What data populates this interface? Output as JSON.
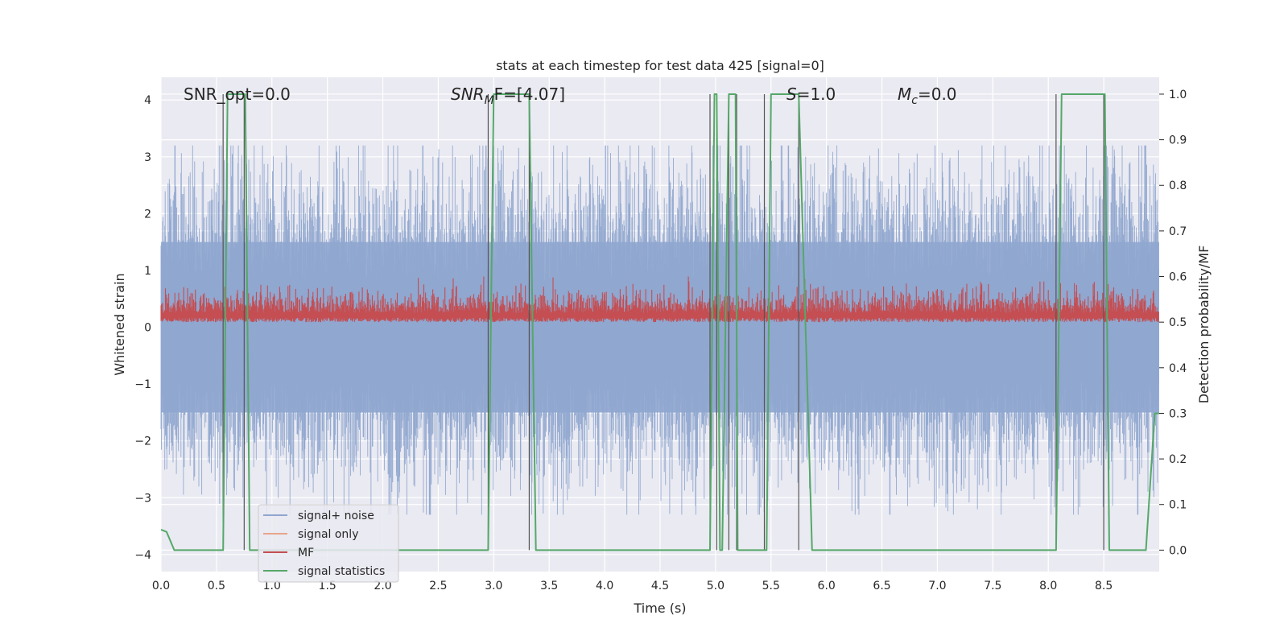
{
  "chart_data": {
    "type": "line",
    "title": "stats at each timestep for test data 425 [signal=0]",
    "xlabel": "Time (s)",
    "ylabel": "Whitened strain",
    "y2label": "Detection probability/MF",
    "xlim": [
      0,
      9.0
    ],
    "ylim": [
      -4.3,
      4.4
    ],
    "y2lim": [
      -0.047,
      1.037
    ],
    "x_ticks": [
      "0.0",
      "0.5",
      "1.0",
      "1.5",
      "2.0",
      "2.5",
      "3.0",
      "3.5",
      "4.0",
      "4.5",
      "5.0",
      "5.5",
      "6.0",
      "6.5",
      "7.0",
      "7.5",
      "8.0",
      "8.5"
    ],
    "y_ticks": [
      "4",
      "3",
      "2",
      "1",
      "0",
      "−1",
      "−2",
      "−3",
      "−4"
    ],
    "y2_ticks": [
      "1.0",
      "0.9",
      "0.8",
      "0.7",
      "0.6",
      "0.5",
      "0.4",
      "0.3",
      "0.2",
      "0.1",
      "0.0"
    ],
    "grid": true,
    "legend_position": "lower-left",
    "annotations": {
      "snr_opt": "SNR_opt=0.0",
      "snr_mf": "SNRₘF=[4.07]",
      "snr_mf_main": "SNR",
      "snr_mf_sub": "M",
      "snr_mf_rest": "F=[4.07]",
      "s_main": "S",
      "s_rest": "=1.0",
      "mc_main": "M",
      "mc_sub": "c",
      "mc_rest": "=0.0"
    },
    "series": [
      {
        "name": "signal+ noise",
        "color": "#8fa6cf",
        "axis": "left",
        "amplitude": 4.0,
        "note_values": "dense noise between approximately -3.3 and 3.8"
      },
      {
        "name": "signal only",
        "color": "#e8a58a",
        "axis": "left",
        "values": [
          0,
          0
        ]
      },
      {
        "name": "MF",
        "color": "#c44e52",
        "axis": "right",
        "band": [
          0.5,
          0.58
        ],
        "peak": 0.6
      },
      {
        "name": "signal statistics",
        "color": "#55a868",
        "axis": "right",
        "x": [
          0,
          0.05,
          0.12,
          0.55,
          0.56,
          0.6,
          0.63,
          0.72,
          0.73,
          0.76,
          0.8,
          2.93,
          2.95,
          3.0,
          3.3,
          3.32,
          3.38,
          4.93,
          4.95,
          4.99,
          5.01,
          5.04,
          5.06,
          5.12,
          5.13,
          5.18,
          5.2,
          5.25,
          5.35,
          5.45,
          5.46,
          5.5,
          5.55,
          5.73,
          5.75,
          5.87,
          5.88,
          8.06,
          8.07,
          8.12,
          8.5,
          8.51,
          8.55,
          8.88,
          8.96,
          9.0
        ],
        "values": [
          0.045,
          0.04,
          0.0,
          0.0,
          0.0,
          1.0,
          1.0,
          1.0,
          1.0,
          1.0,
          0.0,
          0.0,
          0.0,
          1.0,
          1.0,
          1.0,
          0.0,
          0.0,
          0.0,
          1.0,
          1.0,
          0.0,
          0.0,
          1.0,
          1.0,
          1.0,
          0.0,
          0.0,
          0.0,
          0.0,
          0.0,
          1.0,
          1.0,
          1.0,
          1.0,
          0.0,
          0.0,
          0.0,
          0.0,
          1.0,
          1.0,
          1.0,
          0.0,
          0.0,
          0.3,
          0.3
        ]
      }
    ],
    "vertical_markers_x": [
      0.56,
      0.75,
      2.95,
      3.32,
      4.95,
      5.01,
      5.12,
      5.19,
      5.44,
      5.75,
      8.07,
      8.5
    ]
  }
}
